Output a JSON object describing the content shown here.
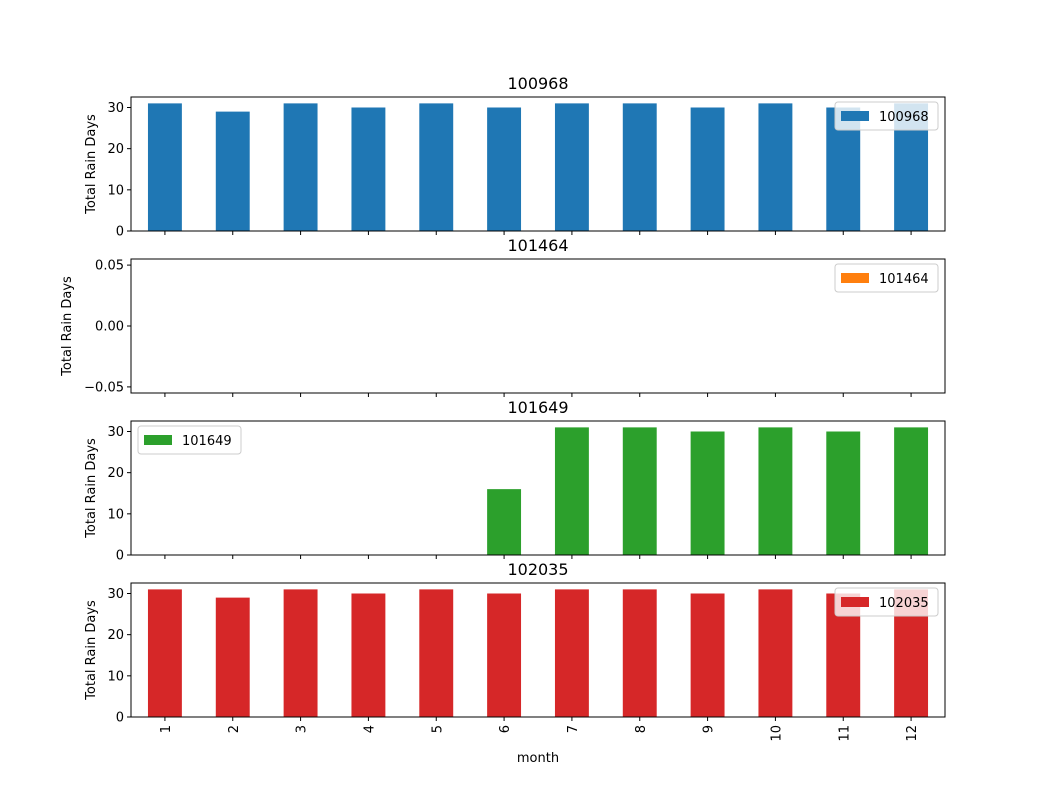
{
  "chart_data": [
    {
      "type": "bar",
      "title": "100968",
      "ylabel": "Total Rain Days",
      "xlabel": "",
      "categories": [
        "1",
        "2",
        "3",
        "4",
        "5",
        "6",
        "7",
        "8",
        "9",
        "10",
        "11",
        "12"
      ],
      "series": [
        {
          "name": "100968",
          "values": [
            31,
            29,
            31,
            30,
            31,
            30,
            31,
            31,
            30,
            31,
            30,
            31
          ],
          "color": "#1f77b4"
        }
      ],
      "ylim": [
        0,
        32.55
      ],
      "yticks": [
        0,
        10,
        20,
        30
      ],
      "ytick_labels": [
        "0",
        "10",
        "20",
        "30"
      ],
      "legend": "top-right",
      "grid": false
    },
    {
      "type": "bar",
      "title": "101464",
      "ylabel": "Total Rain Days",
      "xlabel": "",
      "categories": [
        "1",
        "2",
        "3",
        "4",
        "5",
        "6",
        "7",
        "8",
        "9",
        "10",
        "11",
        "12"
      ],
      "series": [
        {
          "name": "101464",
          "values": [
            0,
            0,
            0,
            0,
            0,
            0,
            0,
            0,
            0,
            0,
            0,
            0
          ],
          "color": "#ff7f0e"
        }
      ],
      "ylim": [
        -0.055,
        0.055
      ],
      "yticks": [
        -0.05,
        0,
        0.05
      ],
      "ytick_labels": [
        "−0.05",
        "0.00",
        "0.05"
      ],
      "legend": "top-right",
      "grid": false
    },
    {
      "type": "bar",
      "title": "101649",
      "ylabel": "Total Rain Days",
      "xlabel": "",
      "categories": [
        "1",
        "2",
        "3",
        "4",
        "5",
        "6",
        "7",
        "8",
        "9",
        "10",
        "11",
        "12"
      ],
      "series": [
        {
          "name": "101649",
          "values": [
            0,
            0,
            0,
            0,
            0,
            16,
            31,
            31,
            30,
            31,
            30,
            31
          ],
          "color": "#2ca02c"
        }
      ],
      "ylim": [
        0,
        32.55
      ],
      "yticks": [
        0,
        10,
        20,
        30
      ],
      "ytick_labels": [
        "0",
        "10",
        "20",
        "30"
      ],
      "legend": "top-left",
      "grid": false
    },
    {
      "type": "bar",
      "title": "102035",
      "ylabel": "Total Rain Days",
      "xlabel": "month",
      "categories": [
        "1",
        "2",
        "3",
        "4",
        "5",
        "6",
        "7",
        "8",
        "9",
        "10",
        "11",
        "12"
      ],
      "series": [
        {
          "name": "102035",
          "values": [
            31,
            29,
            31,
            30,
            31,
            30,
            31,
            31,
            30,
            31,
            30,
            31
          ],
          "color": "#d62728"
        }
      ],
      "ylim": [
        0,
        32.55
      ],
      "yticks": [
        0,
        10,
        20,
        30
      ],
      "ytick_labels": [
        "0",
        "10",
        "20",
        "30"
      ],
      "legend": "top-right",
      "grid": false
    }
  ]
}
